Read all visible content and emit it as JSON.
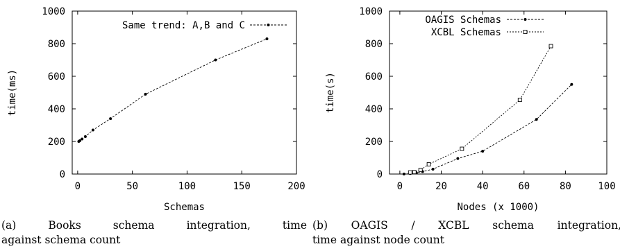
{
  "chart_data": [
    {
      "type": "line",
      "xlabel": "Schemas",
      "ylabel": "time(ms)",
      "xlim": [
        -5,
        200
      ],
      "ylim": [
        0,
        1000
      ],
      "x_ticks": [
        "0",
        "50",
        "100",
        "150",
        "200"
      ],
      "y_ticks": [
        "0",
        "200",
        "400",
        "600",
        "800",
        "1000"
      ],
      "legend_position": "top-right",
      "series": [
        {
          "name": "Same trend: A,B and C",
          "marker": "dot",
          "x": [
            1,
            2,
            4,
            7,
            14,
            30,
            62,
            126,
            173
          ],
          "y": [
            200,
            205,
            215,
            230,
            270,
            340,
            490,
            700,
            830
          ]
        }
      ]
    },
    {
      "type": "line",
      "xlabel": "Nodes (x 1000)",
      "ylabel": "time(s)",
      "xlim": [
        -5,
        100
      ],
      "ylim": [
        0,
        1000
      ],
      "x_ticks": [
        "0",
        "20",
        "40",
        "60",
        "80",
        "100"
      ],
      "y_ticks": [
        "0",
        "200",
        "400",
        "600",
        "800",
        "1000"
      ],
      "legend_position": "top-left",
      "series": [
        {
          "name": "OAGIS Schemas",
          "marker": "dot",
          "x": [
            2,
            5,
            8,
            11,
            16,
            28,
            40,
            66,
            83
          ],
          "y": [
            0,
            3,
            7,
            15,
            30,
            95,
            140,
            335,
            550
          ]
        },
        {
          "name": "XCBL Schemas",
          "marker": "square",
          "x": [
            5,
            7,
            10,
            14,
            30,
            58,
            73
          ],
          "y": [
            10,
            12,
            25,
            60,
            155,
            455,
            785
          ]
        }
      ]
    }
  ],
  "captions": {
    "a": {
      "line1": "(a) Books schema integration, time",
      "line2": "against schema count"
    },
    "b": {
      "line1": "(b) OAGIS / XCBL schema integration,",
      "line2": "time against node count"
    }
  }
}
